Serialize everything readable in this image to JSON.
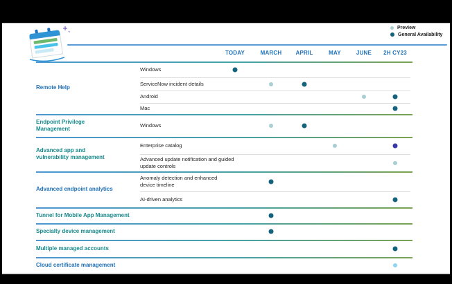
{
  "legend": {
    "items": [
      {
        "label": "Preview",
        "type": "preview"
      },
      {
        "label": "General Availability",
        "type": "ga"
      }
    ]
  },
  "columns": [
    "TODAY",
    "MARCH",
    "APRIL",
    "MAY",
    "JUNE",
    "2H CY23"
  ],
  "colors": {
    "preview": "#a9cfd3",
    "ga": "#14627b",
    "ga_indigo": "#3939a8",
    "preview_sky": "#8fd4f0",
    "category_blue": "#2071b8",
    "category_teal": "#17898c",
    "header_blue": "#2071b8"
  },
  "icons": {
    "logo": "calendar-roadmap-icon",
    "sparkle": "sparkle-icon"
  },
  "groups": [
    {
      "category": "Remote Help",
      "color_key": "category_blue",
      "rows": [
        {
          "label": "Windows",
          "dots": [
            {
              "col": 0,
              "type": "ga"
            }
          ]
        },
        {
          "label": "ServiceNow incident details",
          "dots": [
            {
              "col": 1,
              "type": "preview"
            },
            {
              "col": 2,
              "type": "ga"
            }
          ]
        },
        {
          "label": "Android",
          "dots": [
            {
              "col": 4,
              "type": "preview"
            },
            {
              "col": 5,
              "type": "ga"
            }
          ]
        },
        {
          "label": "Mac",
          "dots": [
            {
              "col": 5,
              "type": "ga"
            }
          ]
        }
      ]
    },
    {
      "category": "Endpoint Privilege\nManagement",
      "color_key": "category_teal",
      "rows": [
        {
          "label": "Windows",
          "dots": [
            {
              "col": 1,
              "type": "preview"
            },
            {
              "col": 2,
              "type": "ga"
            }
          ]
        }
      ]
    },
    {
      "category": "Advanced app and\nvulnerability management",
      "color_key": "category_teal",
      "rows": [
        {
          "label": "Enterprise catalog",
          "dots": [
            {
              "col": 3,
              "type": "preview"
            },
            {
              "col": 5,
              "type": "ga_indigo"
            }
          ]
        },
        {
          "label": "Advanced update notification and guided\nupdate controls",
          "dots": [
            {
              "col": 5,
              "type": "preview"
            }
          ]
        }
      ]
    },
    {
      "category": "Advanced endpoint analytics",
      "color_key": "category_blue",
      "rows": [
        {
          "label": "Anomaly detection and enhanced\ndevice timeline",
          "dots": [
            {
              "col": 1,
              "type": "ga"
            }
          ]
        },
        {
          "label": "AI-driven analytics",
          "dots": [
            {
              "col": 5,
              "type": "ga"
            }
          ]
        }
      ]
    },
    {
      "category": "Tunnel for Mobile App Management",
      "color_key": "category_teal",
      "rows": [
        {
          "label": "",
          "dots": [
            {
              "col": 1,
              "type": "ga"
            }
          ]
        }
      ]
    },
    {
      "category": "Specialty device management",
      "color_key": "category_teal",
      "rows": [
        {
          "label": "",
          "dots": [
            {
              "col": 1,
              "type": "ga"
            }
          ]
        }
      ]
    },
    {
      "category": "Multiple managed accounts",
      "color_key": "category_teal",
      "rows": [
        {
          "label": "",
          "dots": [
            {
              "col": 5,
              "type": "ga"
            }
          ]
        }
      ]
    },
    {
      "category": "Cloud certificate management",
      "color_key": "category_blue",
      "rows": [
        {
          "label": "",
          "dots": [
            {
              "col": 5,
              "type": "preview_sky"
            }
          ]
        }
      ]
    }
  ]
}
